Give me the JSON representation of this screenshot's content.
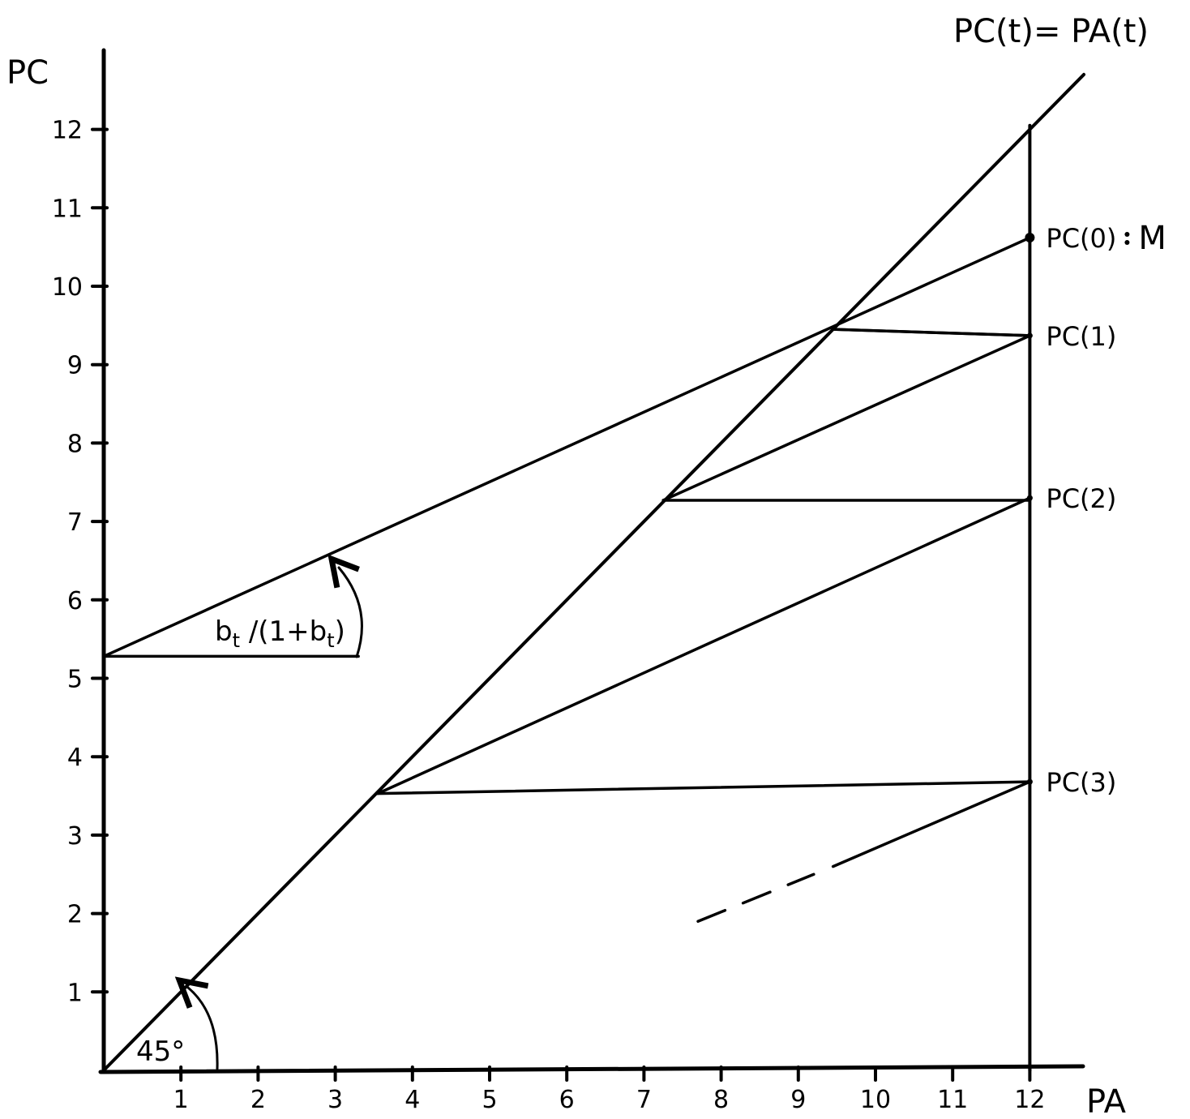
{
  "chart_data": {
    "type": "line",
    "xlabel": "PA",
    "ylabel": "PC",
    "xlim": [
      0,
      12.7
    ],
    "ylim": [
      0,
      13.5
    ],
    "x_ticks": [
      "1",
      "2",
      "3",
      "4",
      "5",
      "6",
      "7",
      "8",
      "9",
      "10",
      "11",
      "12"
    ],
    "y_ticks": [
      "1",
      "2",
      "3",
      "4",
      "5",
      "6",
      "7",
      "8",
      "9",
      "10",
      "11",
      "12"
    ],
    "diagonal_label": "PC(t)= PA(t)",
    "angle_label": "45°",
    "slope_label": "b",
    "slope_label_sub1": "t",
    "slope_label_mid": " /(1+b",
    "slope_label_sub2": "t",
    "slope_label_end": ")",
    "vertical_line_x": 12,
    "diagonal": [
      [
        0,
        0
      ],
      [
        12.7,
        12.7
      ]
    ],
    "sloped_lines": [
      {
        "from": [
          0,
          5.28
        ],
        "to": [
          12,
          10.62
        ]
      },
      {
        "from": [
          7.25,
          7.27
        ],
        "to": [
          12,
          9.37
        ]
      },
      {
        "from": [
          3.55,
          3.53
        ],
        "to": [
          12,
          7.3
        ]
      },
      {
        "from": [
          9.45,
          9.45
        ],
        "to": [
          12,
          9.37
        ]
      }
    ],
    "horizontal_lines": [
      {
        "from": [
          0,
          5.28
        ],
        "to": [
          3.3,
          5.28
        ]
      },
      {
        "from": [
          9.45,
          9.45
        ],
        "to": [
          12,
          9.37
        ]
      },
      {
        "from": [
          7.25,
          7.27
        ],
        "to": [
          12,
          7.27
        ]
      },
      {
        "from": [
          3.55,
          3.53
        ],
        "to": [
          12,
          3.68
        ]
      }
    ],
    "tail_line": {
      "from": [
        9.45,
        2.6
      ],
      "to": [
        12,
        3.68
      ]
    },
    "dashed_tail": {
      "from": [
        7.7,
        1.9
      ],
      "to": [
        9.2,
        2.5
      ]
    },
    "points": [
      {
        "label": "PC(0)",
        "extra": "M",
        "x": 12,
        "y": 10.62
      },
      {
        "label": "PC(1)",
        "x": 12,
        "y": 9.37
      },
      {
        "label": "PC(2)",
        "x": 12,
        "y": 7.3
      },
      {
        "label": "PC(3)",
        "x": 12,
        "y": 3.68
      }
    ]
  }
}
